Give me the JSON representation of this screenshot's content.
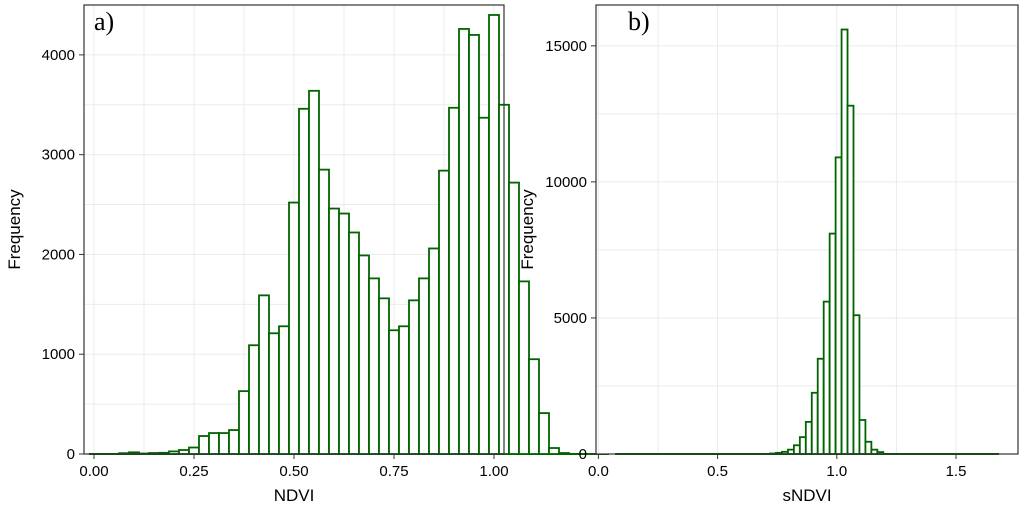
{
  "figure": {
    "background": "#ffffff"
  },
  "style": {
    "bar_stroke": "#006400",
    "grid_color": "#ebebeb",
    "axis_color": "#333333",
    "text_color": "#000000"
  },
  "chart_data": [
    {
      "type": "bar",
      "panel_label": "a)",
      "title": "",
      "xlabel": "NDVI",
      "ylabel": "Frequency",
      "xlim": [
        -0.025,
        1.025
      ],
      "ylim": [
        0,
        4500
      ],
      "x_ticks": [
        0,
        0.25,
        0.5,
        0.75,
        1.0
      ],
      "x_tick_labels": [
        "0.00",
        "0.25",
        "0.50",
        "0.75",
        "1.00"
      ],
      "y_ticks": [
        0,
        1000,
        2000,
        3000,
        4000
      ],
      "y_tick_labels": [
        "0",
        "1000",
        "2000",
        "3000",
        "4000"
      ],
      "grid": true,
      "bin_start": -0.0125,
      "bin_width": 0.025,
      "values": [
        0,
        0,
        0,
        8,
        17,
        5,
        10,
        12,
        26,
        40,
        65,
        180,
        210,
        210,
        240,
        630,
        1090,
        1590,
        1210,
        1280,
        2520,
        3460,
        3640,
        2850,
        2460,
        2410,
        2220,
        1990,
        1760,
        1560,
        1240,
        1280,
        1540,
        1760,
        2060,
        2840,
        3470,
        4260,
        4200,
        3370,
        4400,
        3500,
        2720,
        1730,
        950,
        410,
        60,
        10,
        0,
        0,
        0,
        0
      ]
    },
    {
      "type": "bar",
      "panel_label": "b)",
      "title": "",
      "xlabel": "sNDVI",
      "ylabel": "Frequency",
      "xlim": [
        -0.01,
        1.76
      ],
      "ylim": [
        0,
        16500
      ],
      "x_ticks": [
        0,
        0.5,
        1.0,
        1.5
      ],
      "x_tick_labels": [
        "0.0",
        "0.5",
        "1.0",
        "1.5"
      ],
      "y_ticks": [
        0,
        5000,
        10000,
        15000
      ],
      "y_tick_labels": [
        "0",
        "5000",
        "10000",
        "15000"
      ],
      "grid": true,
      "bin_start": 0.72,
      "bin_width": 0.025,
      "values": [
        18,
        42,
        80,
        160,
        320,
        620,
        1180,
        2250,
        3500,
        5600,
        8100,
        10900,
        15600,
        12800,
        5100,
        1250,
        450,
        160,
        70
      ],
      "baseline_range": [
        0.07,
        1.68
      ]
    }
  ]
}
